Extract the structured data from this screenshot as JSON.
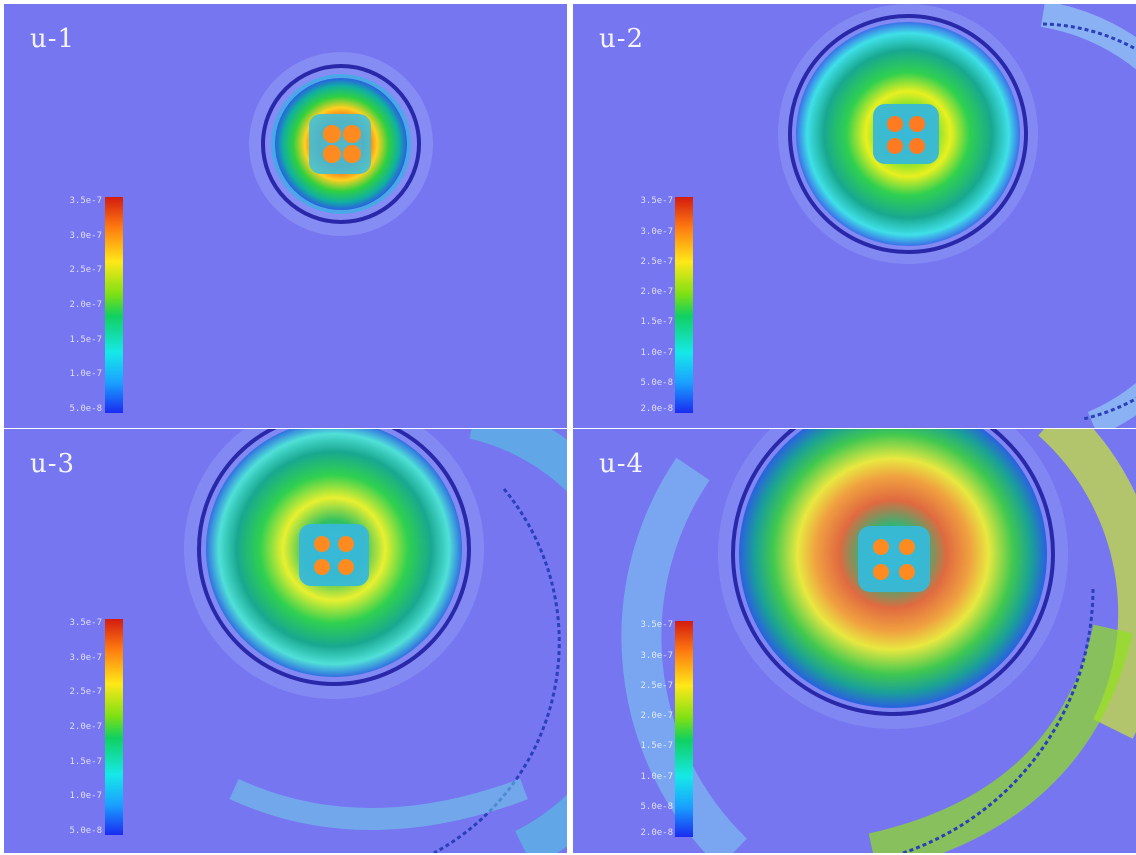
{
  "panels": [
    {
      "id": "p1",
      "label": "u-1",
      "colorbar_ticks": [
        "3.5e-7",
        "3.0e-7",
        "2.5e-7",
        "2.0e-7",
        "1.5e-7",
        "1.0e-7",
        "5.0e-8"
      ]
    },
    {
      "id": "p2",
      "label": "u-2",
      "colorbar_ticks": [
        "3.5e-7",
        "3.0e-7",
        "2.5e-7",
        "2.0e-7",
        "1.5e-7",
        "1.0e-7",
        "5.0e-8",
        "2.0e-8"
      ]
    },
    {
      "id": "p3",
      "label": "u-3",
      "colorbar_ticks": [
        "3.5e-7",
        "3.0e-7",
        "2.5e-7",
        "2.0e-7",
        "1.5e-7",
        "1.0e-7",
        "5.0e-8"
      ]
    },
    {
      "id": "p4",
      "label": "u-4",
      "colorbar_ticks": [
        "3.5e-7",
        "3.0e-7",
        "2.5e-7",
        "2.0e-7",
        "1.5e-7",
        "1.0e-7",
        "5.0e-8",
        "2.0e-8"
      ]
    }
  ],
  "colors": {
    "background": "#7676f0",
    "colormap": [
      "#1a2cf0",
      "#1aa0ff",
      "#16e8e8",
      "#10d060",
      "#7ee014",
      "#ffe818",
      "#ff7a10",
      "#d21c10"
    ]
  }
}
